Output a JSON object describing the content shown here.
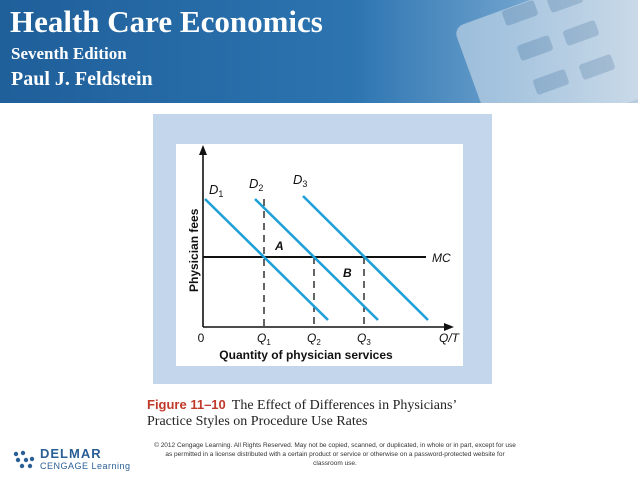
{
  "header": {
    "title": "Health Care Economics",
    "edition": "Seventh Edition",
    "author": "Paul J. Feldstein"
  },
  "figure": {
    "ylabel": "Physician fees",
    "xlabel": "Quantity of physician services",
    "origin": "0",
    "x_end_label": "Q/T",
    "mc_label": "MC",
    "area_labels": [
      "A",
      "B"
    ],
    "demand_curves": [
      {
        "letter": "D",
        "sub": "1"
      },
      {
        "letter": "D",
        "sub": "2"
      },
      {
        "letter": "D",
        "sub": "3"
      }
    ],
    "quantity_marks": [
      {
        "letter": "Q",
        "sub": "1"
      },
      {
        "letter": "Q",
        "sub": "2"
      },
      {
        "letter": "Q",
        "sub": "3"
      }
    ],
    "colors": {
      "frame": "#c3d6ec",
      "curves": "#1fa0d8",
      "axes": "#111111"
    }
  },
  "caption": {
    "label": "Figure 11–10",
    "text": "The Effect of Differences in Physicians’ Practice Styles on Procedure Use Rates"
  },
  "copyright": "© 2012 Cengage Learning. All Rights Reserved. May not be copied, scanned, or duplicated, in whole or in part, except for use as permitted in a license distributed with a certain product or service or otherwise on a password-protected website for classroom use.",
  "logo": {
    "name": "DELMAR",
    "sub": "CENGAGE Learning"
  }
}
